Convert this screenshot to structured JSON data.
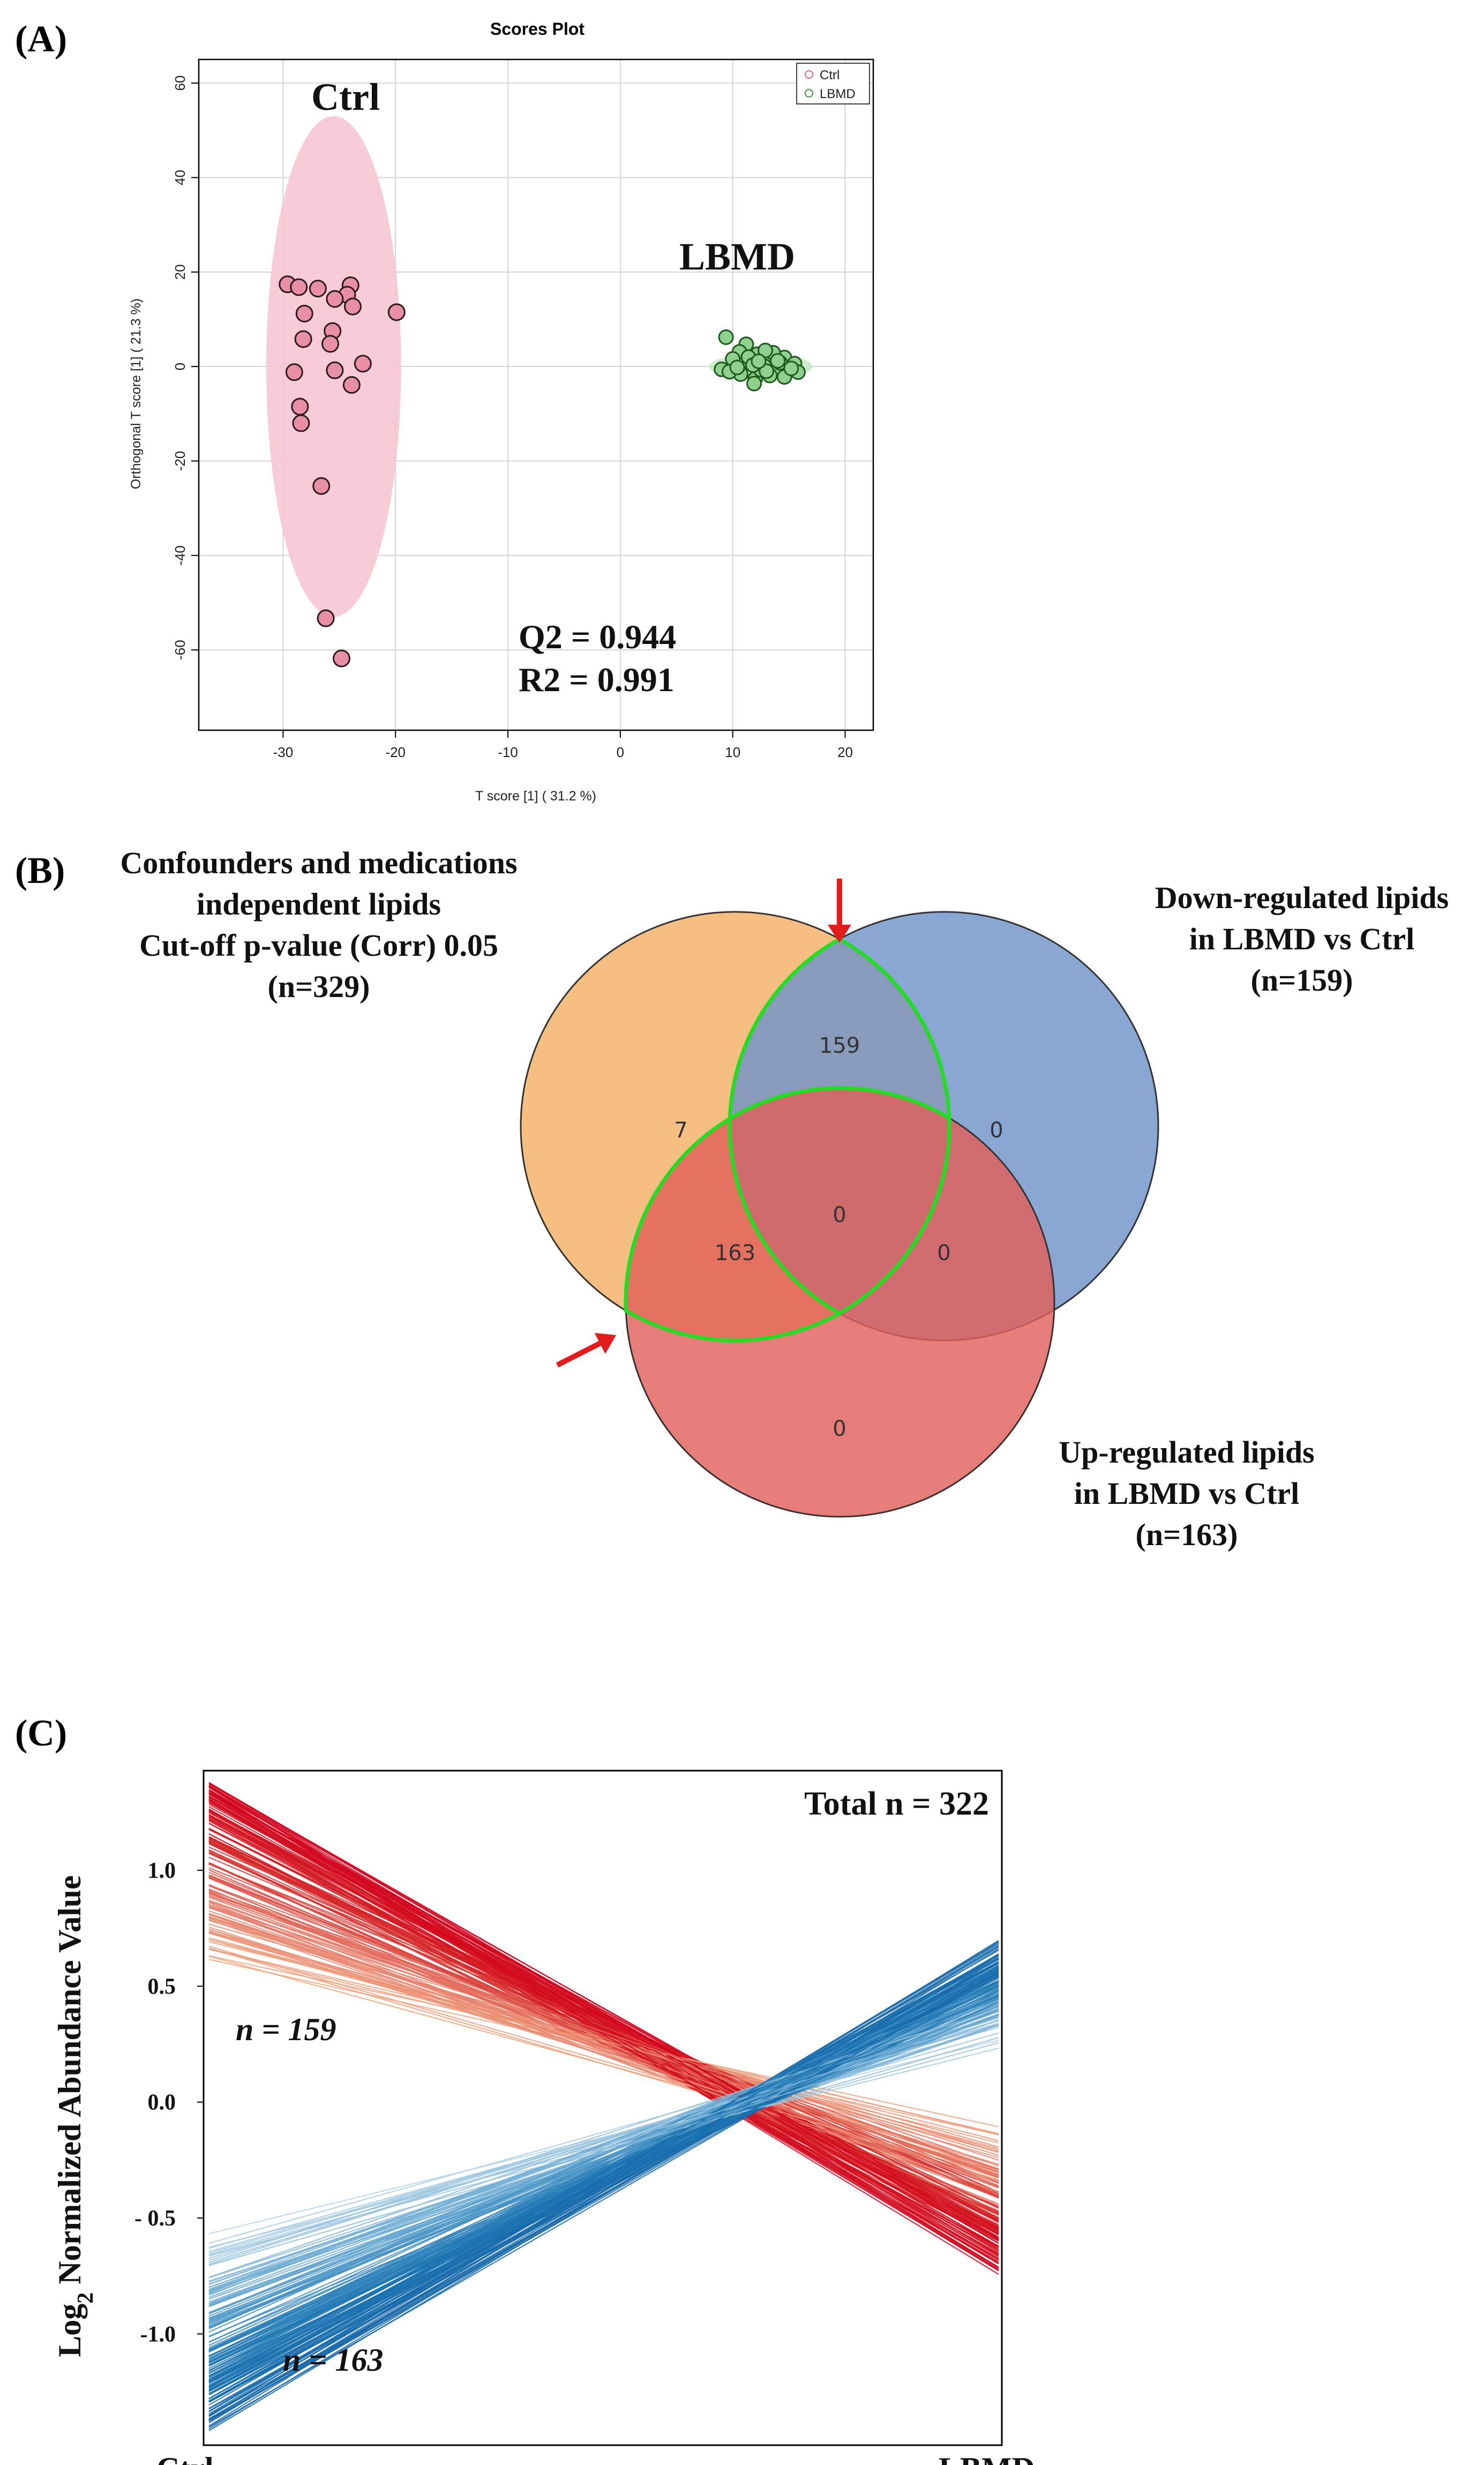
{
  "panels": {
    "a": {
      "label": "(A)"
    },
    "b": {
      "label": "(B)"
    },
    "c": {
      "label": "(C)"
    }
  },
  "chart_data": [
    {
      "type": "scatter",
      "panel": "A",
      "title": "Scores Plot",
      "xlabel": "T score [1] ( 31.2 %)",
      "ylabel": "Orthogonal T score [1] ( 21.3 %)",
      "xlim": [
        -37.5,
        22.5
      ],
      "ylim": [
        -77,
        65
      ],
      "xticks": [
        -30,
        -20,
        -10,
        0,
        10,
        20
      ],
      "xtick_labels": [
        "-30",
        "-20",
        "-10",
        "0",
        "10",
        "20"
      ],
      "yticks": [
        -60,
        -40,
        -20,
        0,
        20,
        40,
        60
      ],
      "ytick_labels": [
        "-60",
        "-40",
        "-20",
        "0",
        "20",
        "40",
        "60"
      ],
      "grid": true,
      "legend": {
        "position": "top-right",
        "entries": [
          "Ctrl",
          "LBMD"
        ]
      },
      "group_labels": {
        "ctrl": "Ctrl",
        "lbmd": "LBMD"
      },
      "stats": {
        "q2": "Q2 = 0.944",
        "r2": "R2 = 0.991"
      },
      "colors": {
        "ctrl_fill": "#e98fa5",
        "ctrl_ellipse": "#f7c3d0",
        "lbmd_fill": "#8fd08f",
        "lbmd_ellipse": "#c6e8c6",
        "lbmd_stroke": "#1e5a1e"
      },
      "ellipses": [
        {
          "group": "Ctrl",
          "cx": -25.5,
          "cy": 0,
          "rx": 6,
          "ry": 53
        },
        {
          "group": "LBMD",
          "cx": 12.5,
          "cy": 0,
          "rx": 4.6,
          "ry": 2.7
        }
      ],
      "series": [
        {
          "name": "Ctrl",
          "points": [
            [
              -29.6,
              17.4
            ],
            [
              -28.6,
              16.8
            ],
            [
              -26.9,
              16.5
            ],
            [
              -24.0,
              17.2
            ],
            [
              -24.3,
              15.2
            ],
            [
              -25.4,
              14.3
            ],
            [
              -23.8,
              12.7
            ],
            [
              -28.1,
              11.2
            ],
            [
              -19.9,
              11.5
            ],
            [
              -25.6,
              7.5
            ],
            [
              -28.2,
              5.8
            ],
            [
              -25.8,
              4.8
            ],
            [
              -22.9,
              0.6
            ],
            [
              -29.0,
              -1.2
            ],
            [
              -25.4,
              -0.8
            ],
            [
              -23.9,
              -3.9
            ],
            [
              -28.5,
              -8.5
            ],
            [
              -28.4,
              -12.0
            ],
            [
              -26.6,
              -25.3
            ],
            [
              -26.2,
              -53.3
            ],
            [
              -24.8,
              -61.8
            ]
          ]
        },
        {
          "name": "LBMD",
          "points": [
            [
              9.4,
              6.2
            ],
            [
              11.2,
              4.7
            ],
            [
              10.6,
              3.1
            ],
            [
              12.2,
              2.6
            ],
            [
              13.1,
              1.8
            ],
            [
              14.6,
              1.9
            ],
            [
              15.5,
              0.6
            ],
            [
              9.0,
              -0.6
            ],
            [
              10.1,
              0.4
            ],
            [
              11.5,
              0.9
            ],
            [
              12.8,
              0.1
            ],
            [
              13.9,
              -0.6
            ],
            [
              15.8,
              -1.2
            ],
            [
              10.7,
              -1.6
            ],
            [
              12.0,
              -2.6
            ],
            [
              13.3,
              -1.9
            ],
            [
              14.6,
              -2.2
            ],
            [
              11.4,
              2.0
            ],
            [
              12.5,
              -0.7
            ],
            [
              10.0,
              1.6
            ],
            [
              14.2,
              0.8
            ],
            [
              13.6,
              2.9
            ],
            [
              11.9,
              -3.6
            ],
            [
              9.7,
              -1.1
            ],
            [
              12.9,
              3.4
            ],
            [
              15.2,
              -0.4
            ],
            [
              10.4,
              -0.2
            ],
            [
              11.8,
              0.3
            ],
            [
              13.0,
              -1.0
            ],
            [
              14.0,
              1.2
            ],
            [
              12.3,
              1.1
            ]
          ]
        }
      ]
    },
    {
      "type": "venn",
      "panel": "B",
      "sets": [
        {
          "key": "confounders",
          "lines": [
            "Confounders and medications",
            "independent lipids",
            "Cut-off p-value (Corr) 0.05",
            "(n=329)"
          ],
          "color": "#f7bb7a"
        },
        {
          "key": "down",
          "lines": [
            "Down-regulated lipids",
            "in LBMD vs Ctrl",
            "(n=159)"
          ],
          "color": "#6f94c8"
        },
        {
          "key": "up",
          "lines": [
            "Up-regulated lipids",
            "in LBMD vs Ctrl",
            "(n=163)"
          ],
          "color": "#e0605a"
        }
      ],
      "regions": {
        "confounders_only": "7",
        "down_only": "0",
        "up_only": "0",
        "confounders_down": "159",
        "confounders_up": "163",
        "down_up": "0",
        "all_three": "0"
      },
      "highlight_color": "#22dd22",
      "arrow_color": "#e21b1b"
    },
    {
      "type": "line",
      "panel": "C",
      "ylabel": "Log2 Normalized Abundance Value",
      "categories": [
        "Ctrl",
        "LBMD"
      ],
      "ylim": [
        -1.48,
        1.43
      ],
      "yticks": [
        1.0,
        0.5,
        0.0,
        -0.5,
        -1.0
      ],
      "ytick_labels": [
        "1.0",
        "0.5",
        "0.0",
        "- 0.5",
        "-1.0"
      ],
      "total_label": "Total n = 322",
      "series_summary": [
        {
          "name": "Down-regulated in LBMD",
          "label": "n = 159",
          "count": 159,
          "ctrl_range": [
            0.55,
            1.38
          ],
          "lbmd_range": [
            -0.78,
            0.2
          ],
          "colors": [
            "#f4b183",
            "#e8826e",
            "#d62a2a",
            "#d1001c"
          ]
        },
        {
          "name": "Up-regulated in LBMD",
          "label": "n = 163",
          "count": 163,
          "ctrl_range": [
            -1.42,
            -0.55
          ],
          "lbmd_range": [
            0.2,
            0.72
          ],
          "colors": [
            "#bcd7e8",
            "#6aaad3",
            "#1f78b4",
            "#1565a8"
          ]
        }
      ]
    }
  ]
}
